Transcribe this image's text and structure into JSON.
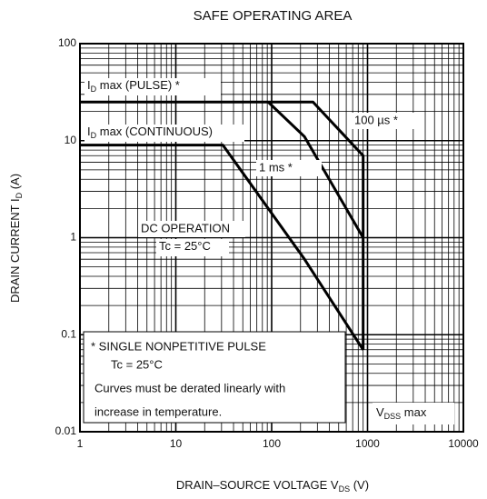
{
  "chart_data": {
    "type": "line",
    "title": "SAFE OPERATING AREA",
    "x_label": {
      "main": "DRAIN–SOURCE VOLTAGE  V",
      "sub": "DS",
      "rest": "  (V)"
    },
    "y_label": {
      "main": "DRAIN CURRENT  I",
      "sub": "D",
      "rest": "  (A)"
    },
    "log_x": true,
    "log_y": true,
    "grid": true,
    "xlim": [
      1,
      10000
    ],
    "ylim": [
      0.01,
      100
    ],
    "xticks": [
      1,
      10,
      100,
      1000,
      10000
    ],
    "yticks": [
      0.01,
      0.1,
      1,
      10,
      100
    ],
    "series": [
      {
        "name": "100 µs *",
        "color": "#000000",
        "x": [
          1,
          270,
          900,
          900
        ],
        "values": [
          25,
          25,
          7,
          0.07
        ]
      },
      {
        "name": "1 ms *",
        "color": "#000000",
        "x": [
          92,
          220,
          900
        ],
        "values": [
          25,
          11,
          1
        ]
      },
      {
        "name": "DC OPERATION",
        "color": "#000000",
        "x": [
          1,
          31,
          220,
          900
        ],
        "values": [
          9,
          9,
          0.6,
          0.07
        ]
      }
    ],
    "annotations": [
      {
        "main": "I",
        "sub": "D",
        "rest": " max (PULSE) *"
      },
      {
        "main": "I",
        "sub": "D",
        "rest": " max (CONTINUOUS)"
      },
      {
        "main": "Tc = 25°C",
        "sub": "",
        "rest": ""
      },
      {
        "main": "V",
        "sub": "DSS",
        "rest": " max"
      }
    ],
    "note": [
      "*   SINGLE NONPETITIVE PULSE",
      "Tc = 25°C",
      "Curves must be derated linearly with",
      "increase in temperature."
    ]
  }
}
